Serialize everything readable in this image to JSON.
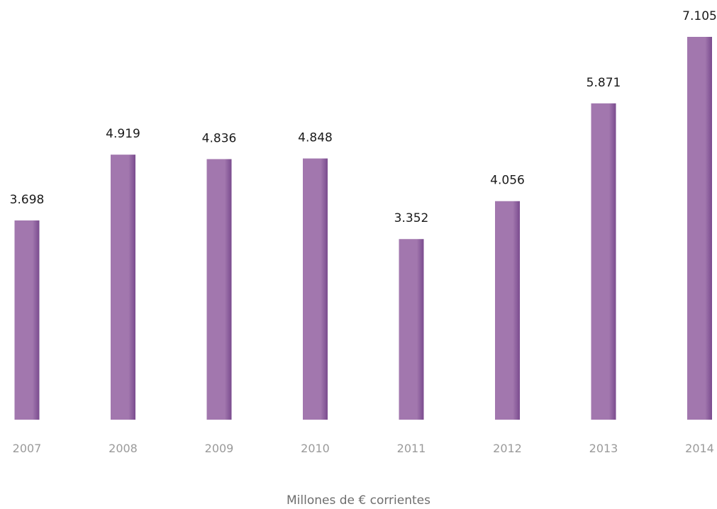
{
  "chart_data": {
    "type": "bar",
    "categories": [
      "2007",
      "2008",
      "2009",
      "2010",
      "2011",
      "2012",
      "2013",
      "2014"
    ],
    "values": [
      3698,
      4919,
      4836,
      4848,
      3352,
      4056,
      5871,
      7105
    ],
    "value_labels": [
      "3.698",
      "4.919",
      "4.836",
      "4.848",
      "3.352",
      "4.056",
      "5.871",
      "7.105"
    ],
    "title": "",
    "xlabel": "Millones de € corrientes",
    "ylabel": "",
    "ylim": [
      0,
      7105
    ],
    "grid": false,
    "legend": "none",
    "colors": {
      "bar_main": "#a277ae",
      "bar_shade": "#7a4b8e",
      "value_text": "#1a1a1a",
      "tick_text": "#9a9a9a",
      "axis_title_text": "#6e6e6e"
    }
  }
}
